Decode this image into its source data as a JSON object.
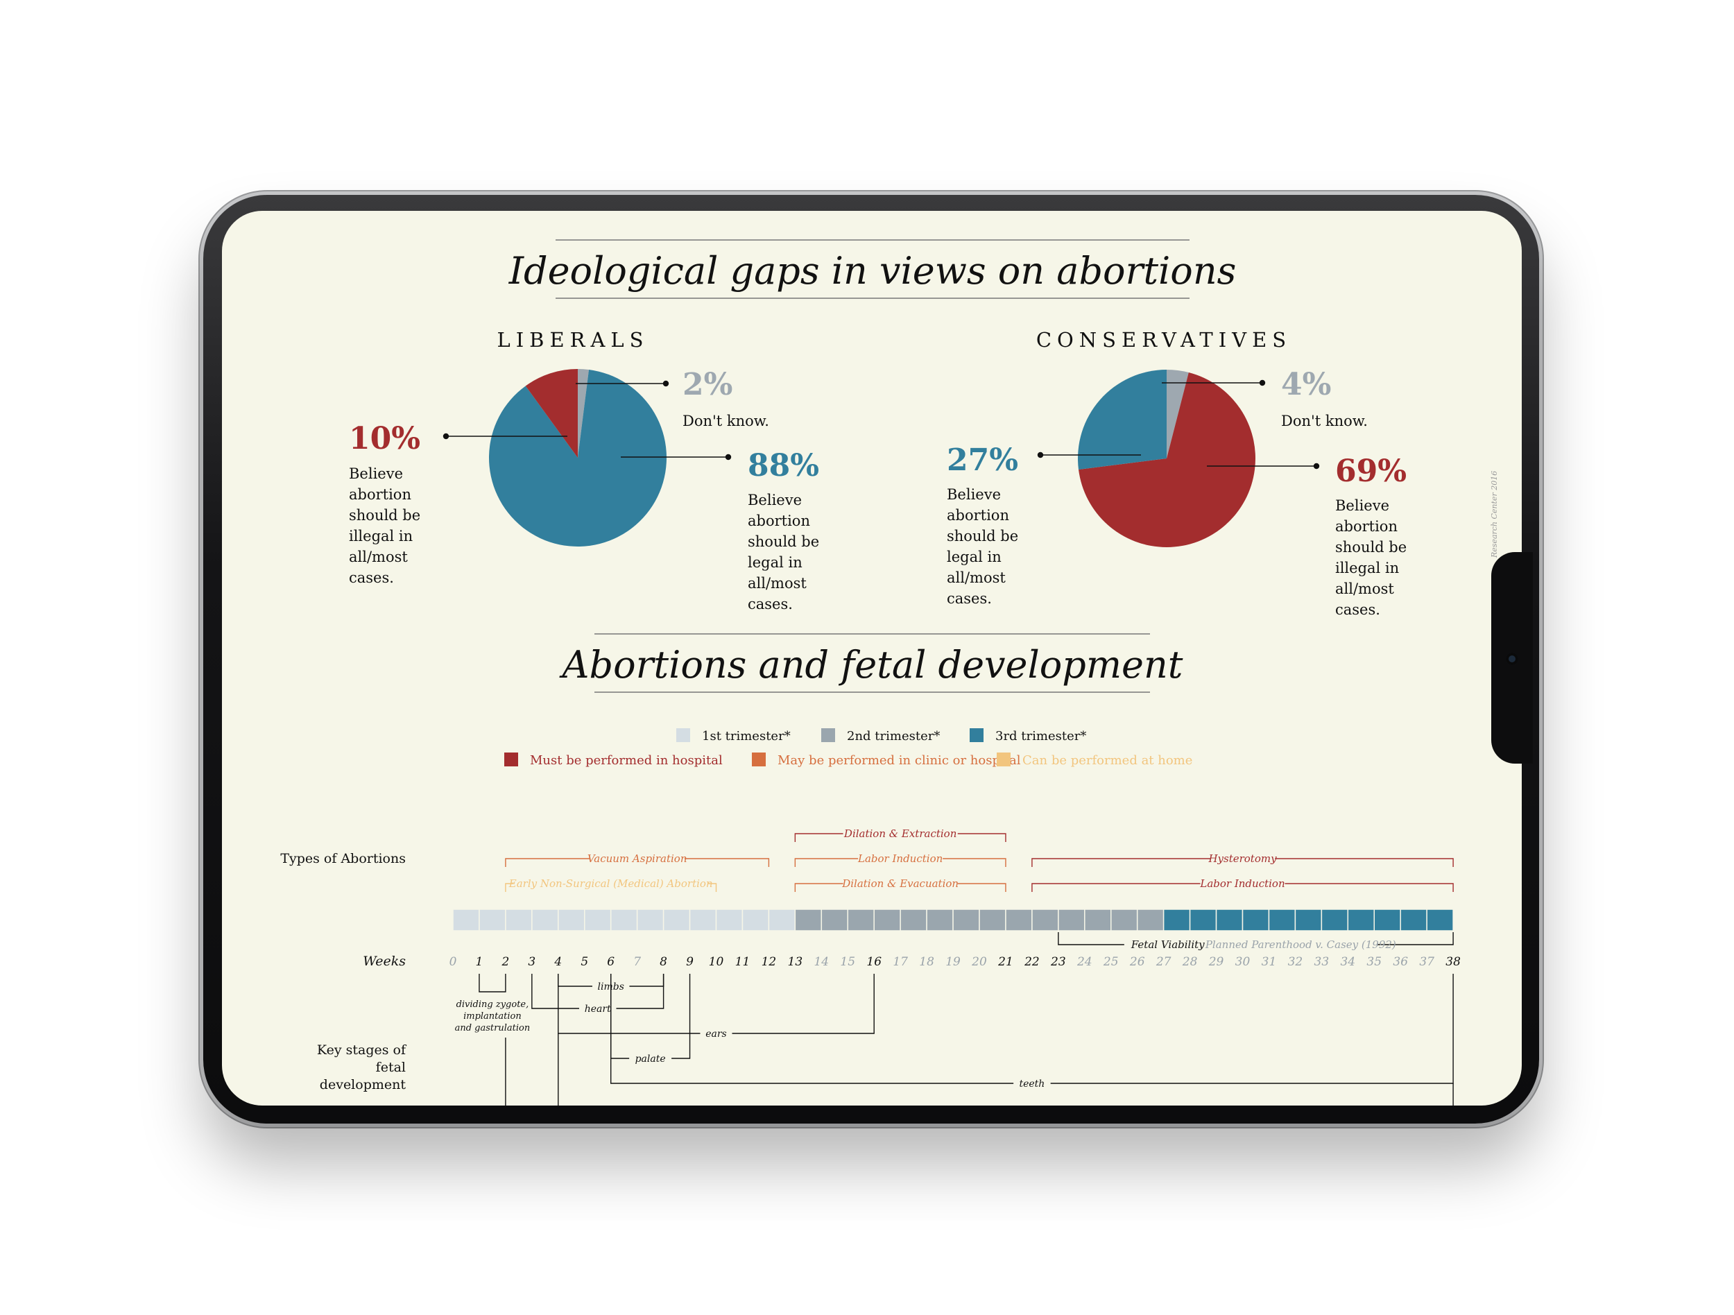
{
  "section1": {
    "title": "Ideological gaps in views on abortions"
  },
  "section2": {
    "title": "Abortions and fetal development"
  },
  "credit": "Research Center 2016",
  "colors": {
    "background": "#f6f6e8",
    "blue": "#327f9d",
    "red": "#a32d2e",
    "gray": "#9ea8b0",
    "orange": "#d66f3f",
    "light_orange": "#f2c57e",
    "trimester1": "#d4dde3",
    "trimester2": "#9aa6ae",
    "trimester3": "#327f9d"
  },
  "chart_data": [
    {
      "type": "pie",
      "title": "LIBERALS",
      "slices": [
        {
          "pct": "2%",
          "value": 2,
          "label": "Don't know.",
          "color": "#9ea8b0"
        },
        {
          "pct": "88%",
          "value": 88,
          "label": "Believe abortion should be legal in all/most cases.",
          "color": "#327f9d"
        },
        {
          "pct": "10%",
          "value": 10,
          "label": "Believe abortion should be illegal in all/most cases.",
          "color": "#a32d2e"
        }
      ]
    },
    {
      "type": "pie",
      "title": "CONSERVATIVES",
      "slices": [
        {
          "pct": "4%",
          "value": 4,
          "label": "Don't know.",
          "color": "#9ea8b0"
        },
        {
          "pct": "69%",
          "value": 69,
          "label": "Believe abortion should be illegal in all/most cases.",
          "color": "#a32d2e"
        },
        {
          "pct": "27%",
          "value": 27,
          "label": "Believe abortion should be legal in all/most cases.",
          "color": "#327f9d"
        }
      ]
    },
    {
      "type": "timeline",
      "legend_trimesters": [
        {
          "label": "1st trimester*",
          "color": "#d4dde3"
        },
        {
          "label": "2nd trimester*",
          "color": "#9aa6ae"
        },
        {
          "label": "3rd trimester*",
          "color": "#327f9d"
        }
      ],
      "legend_settings": [
        {
          "label": "Must be performed in hospital",
          "color": "#a32d2e"
        },
        {
          "label": "May be performed in clinic or hospital",
          "color": "#d66f3f"
        },
        {
          "label": "Can be performed at home",
          "color": "#f2c57e"
        }
      ],
      "weeks_label": "Weeks",
      "weeks": [
        0,
        1,
        2,
        3,
        4,
        5,
        6,
        7,
        8,
        9,
        10,
        11,
        12,
        13,
        14,
        15,
        16,
        17,
        18,
        19,
        20,
        21,
        22,
        23,
        24,
        25,
        26,
        27,
        28,
        29,
        30,
        31,
        32,
        33,
        34,
        35,
        36,
        37,
        38
      ],
      "emphasized_weeks": [
        1,
        2,
        3,
        4,
        5,
        6,
        8,
        9,
        10,
        11,
        12,
        13,
        16,
        21,
        22,
        23,
        38
      ],
      "trimester_ranges": [
        {
          "name": "1st trimester*",
          "from_week": 0,
          "to_week": 13
        },
        {
          "name": "2nd trimester*",
          "from_week": 13,
          "to_week": 27
        },
        {
          "name": "3rd trimester*",
          "from_week": 27,
          "to_week": 38
        }
      ],
      "types_label": "Types of Abortions",
      "abortion_types": [
        {
          "name": "Dilation & Extraction",
          "from_week": 13,
          "to_week": 21,
          "setting": "hospital"
        },
        {
          "name": "Vacuum Aspiration",
          "from_week": 2,
          "to_week": 12,
          "setting": "clinic"
        },
        {
          "name": "Labor Induction",
          "from_week": 13,
          "to_week": 21,
          "setting": "clinic"
        },
        {
          "name": "Hysterotomy",
          "from_week": 22,
          "to_week": 38,
          "setting": "hospital"
        },
        {
          "name": "Early Non-Surgical (Medical) Abortion",
          "from_week": 2,
          "to_week": 10,
          "setting": "home"
        },
        {
          "name": "Dilation & Evacuation",
          "from_week": 13,
          "to_week": 21,
          "setting": "clinic"
        },
        {
          "name": "Labor Induction",
          "from_week": 22,
          "to_week": 38,
          "setting": "hospital"
        }
      ],
      "viability": {
        "label": "Fetal Viability",
        "note": "Planned Parenthood v. Casey (1992)",
        "from_week": 23,
        "to_week": 38
      },
      "stages_label": "Key stages of fetal development",
      "stages": [
        {
          "name": "dividing zygote, implantation and gastrulation",
          "from_week": 1,
          "to_week": 2
        },
        {
          "name": "limbs",
          "from_week": 4,
          "to_week": 8
        },
        {
          "name": "heart",
          "from_week": 3,
          "to_week": 8
        },
        {
          "name": "ears",
          "from_week": 4,
          "to_week": 16
        },
        {
          "name": "palate",
          "from_week": 6,
          "to_week": 9
        },
        {
          "name": "teeth",
          "from_week": 6,
          "to_week": 38
        }
      ]
    }
  ]
}
